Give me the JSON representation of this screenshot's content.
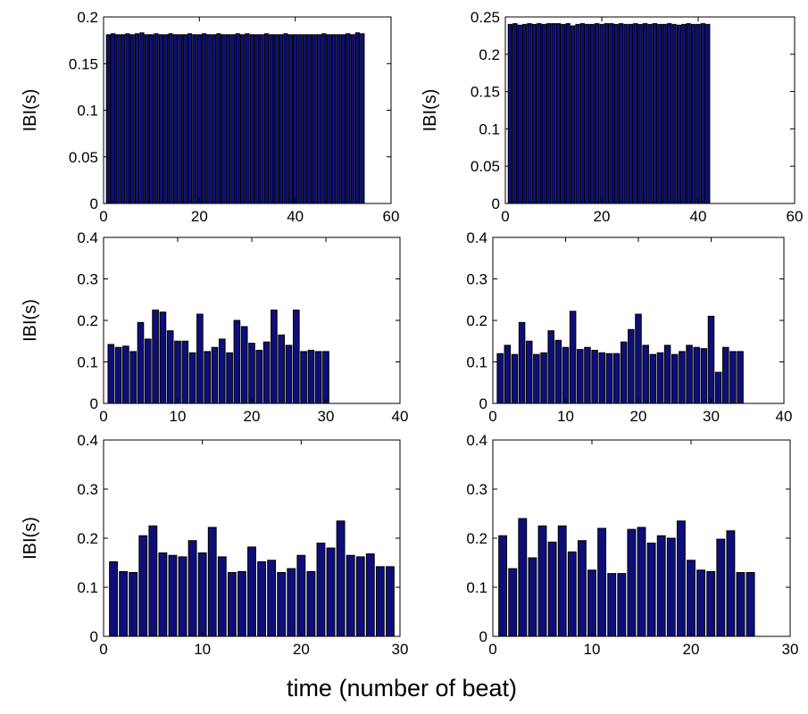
{
  "figure": {
    "xlabel": "time (number of beat)"
  },
  "colors": {
    "bar_fill": "#0e0e7a",
    "bar_edge": "#000000",
    "axes": "#000000",
    "background": "#ffffff"
  },
  "chart_data": [
    {
      "type": "bar",
      "ylabel": "IBI(s)",
      "xlim": [
        0,
        60
      ],
      "ylim": [
        0,
        0.2
      ],
      "xticks": [
        "0",
        "20",
        "40",
        "60"
      ],
      "yticks": [
        "0",
        "0.05",
        "0.1",
        "0.15",
        "0.2"
      ],
      "grid": false,
      "x": [
        1,
        2,
        3,
        4,
        5,
        6,
        7,
        8,
        9,
        10,
        11,
        12,
        13,
        14,
        15,
        16,
        17,
        18,
        19,
        20,
        21,
        22,
        23,
        24,
        25,
        26,
        27,
        28,
        29,
        30,
        31,
        32,
        33,
        34,
        35,
        36,
        37,
        38,
        39,
        40,
        41,
        42,
        43,
        44,
        45,
        46,
        47,
        48,
        49,
        50,
        51,
        52,
        53,
        54
      ],
      "values": [
        0.181,
        0.182,
        0.181,
        0.181,
        0.182,
        0.181,
        0.182,
        0.183,
        0.181,
        0.181,
        0.182,
        0.181,
        0.181,
        0.182,
        0.181,
        0.181,
        0.181,
        0.182,
        0.181,
        0.181,
        0.182,
        0.181,
        0.181,
        0.182,
        0.181,
        0.181,
        0.181,
        0.182,
        0.181,
        0.182,
        0.181,
        0.181,
        0.181,
        0.182,
        0.181,
        0.181,
        0.181,
        0.182,
        0.181,
        0.181,
        0.181,
        0.181,
        0.181,
        0.181,
        0.181,
        0.182,
        0.181,
        0.181,
        0.181,
        0.181,
        0.182,
        0.181,
        0.183,
        0.182
      ]
    },
    {
      "type": "bar",
      "ylabel": "IBI(s)",
      "xlim": [
        0,
        60
      ],
      "ylim": [
        0,
        0.25
      ],
      "xticks": [
        "0",
        "20",
        "40",
        "60"
      ],
      "yticks": [
        "0",
        "0.05",
        "0.1",
        "0.15",
        "0.2",
        "0.25"
      ],
      "grid": false,
      "x": [
        1,
        2,
        3,
        4,
        5,
        6,
        7,
        8,
        9,
        10,
        11,
        12,
        13,
        14,
        15,
        16,
        17,
        18,
        19,
        20,
        21,
        22,
        23,
        24,
        25,
        26,
        27,
        28,
        29,
        30,
        31,
        32,
        33,
        34,
        35,
        36,
        37,
        38,
        39,
        40,
        41,
        42
      ],
      "values": [
        0.24,
        0.241,
        0.239,
        0.24,
        0.241,
        0.24,
        0.241,
        0.24,
        0.241,
        0.241,
        0.241,
        0.24,
        0.241,
        0.238,
        0.24,
        0.241,
        0.24,
        0.24,
        0.241,
        0.24,
        0.241,
        0.241,
        0.24,
        0.241,
        0.24,
        0.24,
        0.241,
        0.24,
        0.241,
        0.24,
        0.241,
        0.24,
        0.24,
        0.241,
        0.24,
        0.239,
        0.24,
        0.241,
        0.24,
        0.24,
        0.241,
        0.24
      ]
    },
    {
      "type": "bar",
      "ylabel": "IBI(s)",
      "xlim": [
        0,
        40
      ],
      "ylim": [
        0,
        0.4
      ],
      "xticks": [
        "0",
        "10",
        "20",
        "30",
        "40"
      ],
      "yticks": [
        "0",
        "0.1",
        "0.2",
        "0.3",
        "0.4"
      ],
      "grid": false,
      "x": [
        1,
        2,
        3,
        4,
        5,
        6,
        7,
        8,
        9,
        10,
        11,
        12,
        13,
        14,
        15,
        16,
        17,
        18,
        19,
        20,
        21,
        22,
        23,
        24,
        25,
        26,
        27,
        28,
        29,
        30
      ],
      "values": [
        0.142,
        0.135,
        0.138,
        0.125,
        0.195,
        0.155,
        0.225,
        0.22,
        0.175,
        0.15,
        0.15,
        0.122,
        0.215,
        0.125,
        0.135,
        0.155,
        0.122,
        0.2,
        0.185,
        0.145,
        0.128,
        0.148,
        0.225,
        0.165,
        0.14,
        0.225,
        0.125,
        0.128,
        0.125,
        0.125
      ]
    },
    {
      "type": "bar",
      "ylabel": "",
      "xlim": [
        0,
        40
      ],
      "ylim": [
        0,
        0.4
      ],
      "xticks": [
        "0",
        "10",
        "20",
        "30",
        "40"
      ],
      "yticks": [
        "0",
        "0.1",
        "0.2",
        "0.3",
        "0.4"
      ],
      "grid": false,
      "x": [
        1,
        2,
        3,
        4,
        5,
        6,
        7,
        8,
        9,
        10,
        11,
        12,
        13,
        14,
        15,
        16,
        17,
        18,
        19,
        20,
        21,
        22,
        23,
        24,
        25,
        26,
        27,
        28,
        29,
        30,
        31,
        32,
        33,
        34
      ],
      "values": [
        0.12,
        0.14,
        0.118,
        0.195,
        0.15,
        0.118,
        0.122,
        0.175,
        0.152,
        0.135,
        0.222,
        0.13,
        0.135,
        0.128,
        0.122,
        0.12,
        0.12,
        0.148,
        0.178,
        0.215,
        0.14,
        0.118,
        0.122,
        0.14,
        0.118,
        0.125,
        0.14,
        0.135,
        0.132,
        0.21,
        0.075,
        0.135,
        0.125,
        0.125
      ]
    },
    {
      "type": "bar",
      "ylabel": "IBI(s)",
      "xlim": [
        0,
        30
      ],
      "ylim": [
        0,
        0.4
      ],
      "xticks": [
        "0",
        "10",
        "20",
        "30"
      ],
      "yticks": [
        "0",
        "0.1",
        "0.2",
        "0.3",
        "0.4"
      ],
      "grid": false,
      "x": [
        1,
        2,
        3,
        4,
        5,
        6,
        7,
        8,
        9,
        10,
        11,
        12,
        13,
        14,
        15,
        16,
        17,
        18,
        19,
        20,
        21,
        22,
        23,
        24,
        25,
        26,
        27,
        28,
        29
      ],
      "values": [
        0.152,
        0.132,
        0.13,
        0.205,
        0.225,
        0.17,
        0.165,
        0.162,
        0.195,
        0.17,
        0.222,
        0.162,
        0.13,
        0.132,
        0.182,
        0.152,
        0.155,
        0.13,
        0.138,
        0.165,
        0.132,
        0.19,
        0.18,
        0.235,
        0.165,
        0.162,
        0.168,
        0.142,
        0.142
      ]
    },
    {
      "type": "bar",
      "ylabel": "",
      "xlim": [
        0,
        30
      ],
      "ylim": [
        0,
        0.4
      ],
      "xticks": [
        "0",
        "10",
        "20",
        "30"
      ],
      "yticks": [
        "0",
        "0.1",
        "0.2",
        "0.3",
        "0.4"
      ],
      "grid": false,
      "x": [
        1,
        2,
        3,
        4,
        5,
        6,
        7,
        8,
        9,
        10,
        11,
        12,
        13,
        14,
        15,
        16,
        17,
        18,
        19,
        20,
        21,
        22,
        23,
        24,
        25,
        26
      ],
      "values": [
        0.205,
        0.138,
        0.24,
        0.16,
        0.225,
        0.192,
        0.225,
        0.172,
        0.195,
        0.135,
        0.22,
        0.128,
        0.128,
        0.218,
        0.222,
        0.19,
        0.205,
        0.2,
        0.235,
        0.155,
        0.135,
        0.132,
        0.198,
        0.215,
        0.13,
        0.13
      ]
    }
  ]
}
